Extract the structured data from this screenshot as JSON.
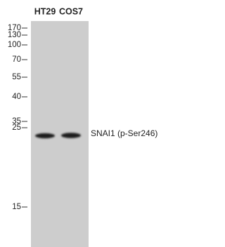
{
  "lanes": [
    "HT29",
    "COS7"
  ],
  "markers": [
    "170",
    "130",
    "100",
    "70",
    "55",
    "40",
    "35",
    "25",
    "15"
  ],
  "band_label": "SNAI1 (p-Ser246)"
}
